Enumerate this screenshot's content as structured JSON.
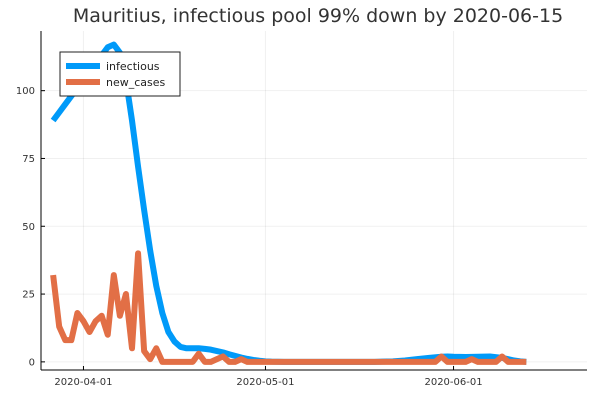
{
  "chart_data": {
    "type": "line",
    "title": "Mauritius, infectious pool 99% down by 2020-06-15",
    "xlabel": "",
    "ylabel": "",
    "x_start": "2020-03-25",
    "x_end": "2020-06-23",
    "ylim": [
      -3,
      122
    ],
    "x_ticks": [
      {
        "label": "2020-04-01",
        "day": 7
      },
      {
        "label": "2020-05-01",
        "day": 37
      },
      {
        "label": "2020-06-01",
        "day": 68
      }
    ],
    "y_ticks": [
      0,
      25,
      50,
      75,
      100
    ],
    "legend": {
      "position": "top-left"
    },
    "series": [
      {
        "name": "infectious",
        "color": "#009af9",
        "points": [
          [
            2,
            89
          ],
          [
            3,
            92
          ],
          [
            4,
            95
          ],
          [
            5,
            98
          ],
          [
            6,
            101
          ],
          [
            7,
            104
          ],
          [
            8,
            107
          ],
          [
            9,
            110
          ],
          [
            10,
            113
          ],
          [
            11,
            116
          ],
          [
            12,
            117
          ],
          [
            13,
            114
          ],
          [
            14,
            104
          ],
          [
            15,
            89
          ],
          [
            16,
            72
          ],
          [
            17,
            56
          ],
          [
            18,
            41
          ],
          [
            19,
            28
          ],
          [
            20,
            18
          ],
          [
            21,
            11
          ],
          [
            22,
            7.5
          ],
          [
            23,
            5.5
          ],
          [
            24,
            5
          ],
          [
            25,
            5
          ],
          [
            26,
            5
          ],
          [
            27,
            4.8
          ],
          [
            28,
            4.5
          ],
          [
            29,
            4
          ],
          [
            30,
            3.5
          ],
          [
            31,
            2.8
          ],
          [
            32,
            2.2
          ],
          [
            33,
            1.6
          ],
          [
            34,
            1.1
          ],
          [
            35,
            0.7
          ],
          [
            36,
            0.4
          ],
          [
            37,
            0.2
          ],
          [
            38,
            0.1
          ],
          [
            40,
            0
          ],
          [
            42,
            0
          ],
          [
            50,
            0
          ],
          [
            55,
            0
          ],
          [
            58,
            0.2
          ],
          [
            60,
            0.5
          ],
          [
            62,
            1
          ],
          [
            64,
            1.5
          ],
          [
            66,
            1.9
          ],
          [
            67,
            2
          ],
          [
            68,
            1.9
          ],
          [
            70,
            1.8
          ],
          [
            72,
            1.9
          ],
          [
            74,
            2
          ],
          [
            76,
            1.5
          ],
          [
            77,
            1
          ],
          [
            78,
            0.5
          ],
          [
            79,
            0.2
          ],
          [
            80,
            0
          ]
        ]
      },
      {
        "name": "new_cases",
        "color": "#e26f46",
        "points": [
          [
            2,
            32
          ],
          [
            3,
            13
          ],
          [
            4,
            8
          ],
          [
            5,
            8
          ],
          [
            6,
            18
          ],
          [
            7,
            15
          ],
          [
            8,
            11
          ],
          [
            9,
            15
          ],
          [
            10,
            17
          ],
          [
            11,
            10
          ],
          [
            12,
            32
          ],
          [
            13,
            17
          ],
          [
            14,
            25
          ],
          [
            15,
            5
          ],
          [
            16,
            40
          ],
          [
            17,
            4
          ],
          [
            18,
            1
          ],
          [
            19,
            5
          ],
          [
            20,
            0
          ],
          [
            21,
            0
          ],
          [
            22,
            0
          ],
          [
            23,
            0
          ],
          [
            24,
            0
          ],
          [
            25,
            0
          ],
          [
            26,
            3
          ],
          [
            27,
            0
          ],
          [
            28,
            0
          ],
          [
            29,
            1
          ],
          [
            30,
            2
          ],
          [
            31,
            0
          ],
          [
            32,
            0
          ],
          [
            33,
            1
          ],
          [
            34,
            0
          ],
          [
            35,
            0
          ],
          [
            36,
            0
          ],
          [
            37,
            0
          ],
          [
            38,
            0
          ],
          [
            39,
            0
          ],
          [
            40,
            0
          ],
          [
            45,
            0
          ],
          [
            50,
            0
          ],
          [
            55,
            0
          ],
          [
            60,
            0
          ],
          [
            61,
            0
          ],
          [
            62,
            0
          ],
          [
            63,
            0
          ],
          [
            64,
            0
          ],
          [
            65,
            0
          ],
          [
            66,
            2
          ],
          [
            67,
            0
          ],
          [
            68,
            0
          ],
          [
            69,
            0
          ],
          [
            70,
            0
          ],
          [
            71,
            1
          ],
          [
            72,
            0
          ],
          [
            73,
            0
          ],
          [
            74,
            0
          ],
          [
            75,
            0
          ],
          [
            76,
            2
          ],
          [
            77,
            0
          ],
          [
            78,
            0
          ],
          [
            79,
            0
          ],
          [
            80,
            0
          ]
        ]
      }
    ]
  }
}
